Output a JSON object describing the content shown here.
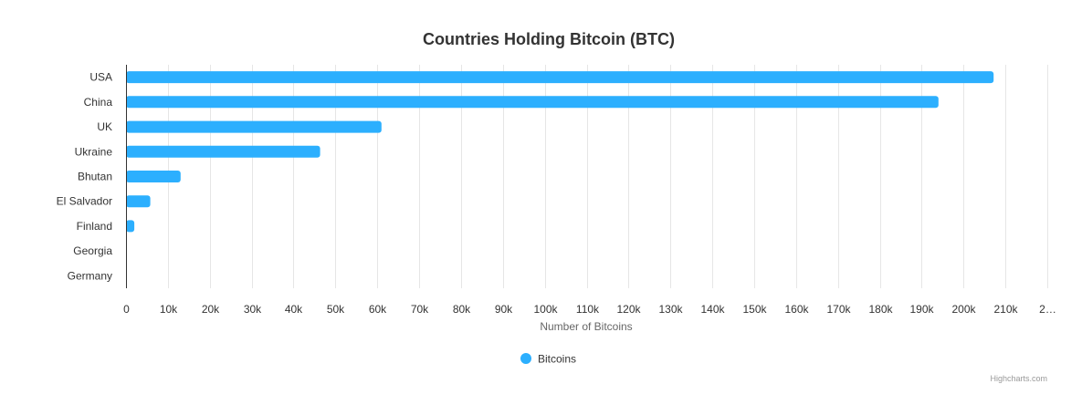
{
  "chart_data": {
    "type": "bar",
    "orientation": "horizontal",
    "title": "Countries Holding Bitcoin (BTC)",
    "xlabel": "Number of Bitcoins",
    "ylabel": "",
    "categories": [
      "USA",
      "China",
      "UK",
      "Ukraine",
      "Bhutan",
      "El Salvador",
      "Finland",
      "Georgia",
      "Germany"
    ],
    "series": [
      {
        "name": "Bitcoins",
        "values": [
          207189,
          194000,
          61000,
          46351,
          13029,
          5800,
          1981,
          66,
          0
        ],
        "color": "#2caffe"
      }
    ],
    "xlim": [
      0,
      220000
    ],
    "tick_labels": [
      "0",
      "10k",
      "20k",
      "30k",
      "40k",
      "50k",
      "60k",
      "70k",
      "80k",
      "90k",
      "100k",
      "110k",
      "120k",
      "130k",
      "140k",
      "150k",
      "160k",
      "170k",
      "180k",
      "190k",
      "200k",
      "210k",
      "2…"
    ],
    "grid": true,
    "legend_position": "bottom-center"
  },
  "credits": "Highcharts.com"
}
